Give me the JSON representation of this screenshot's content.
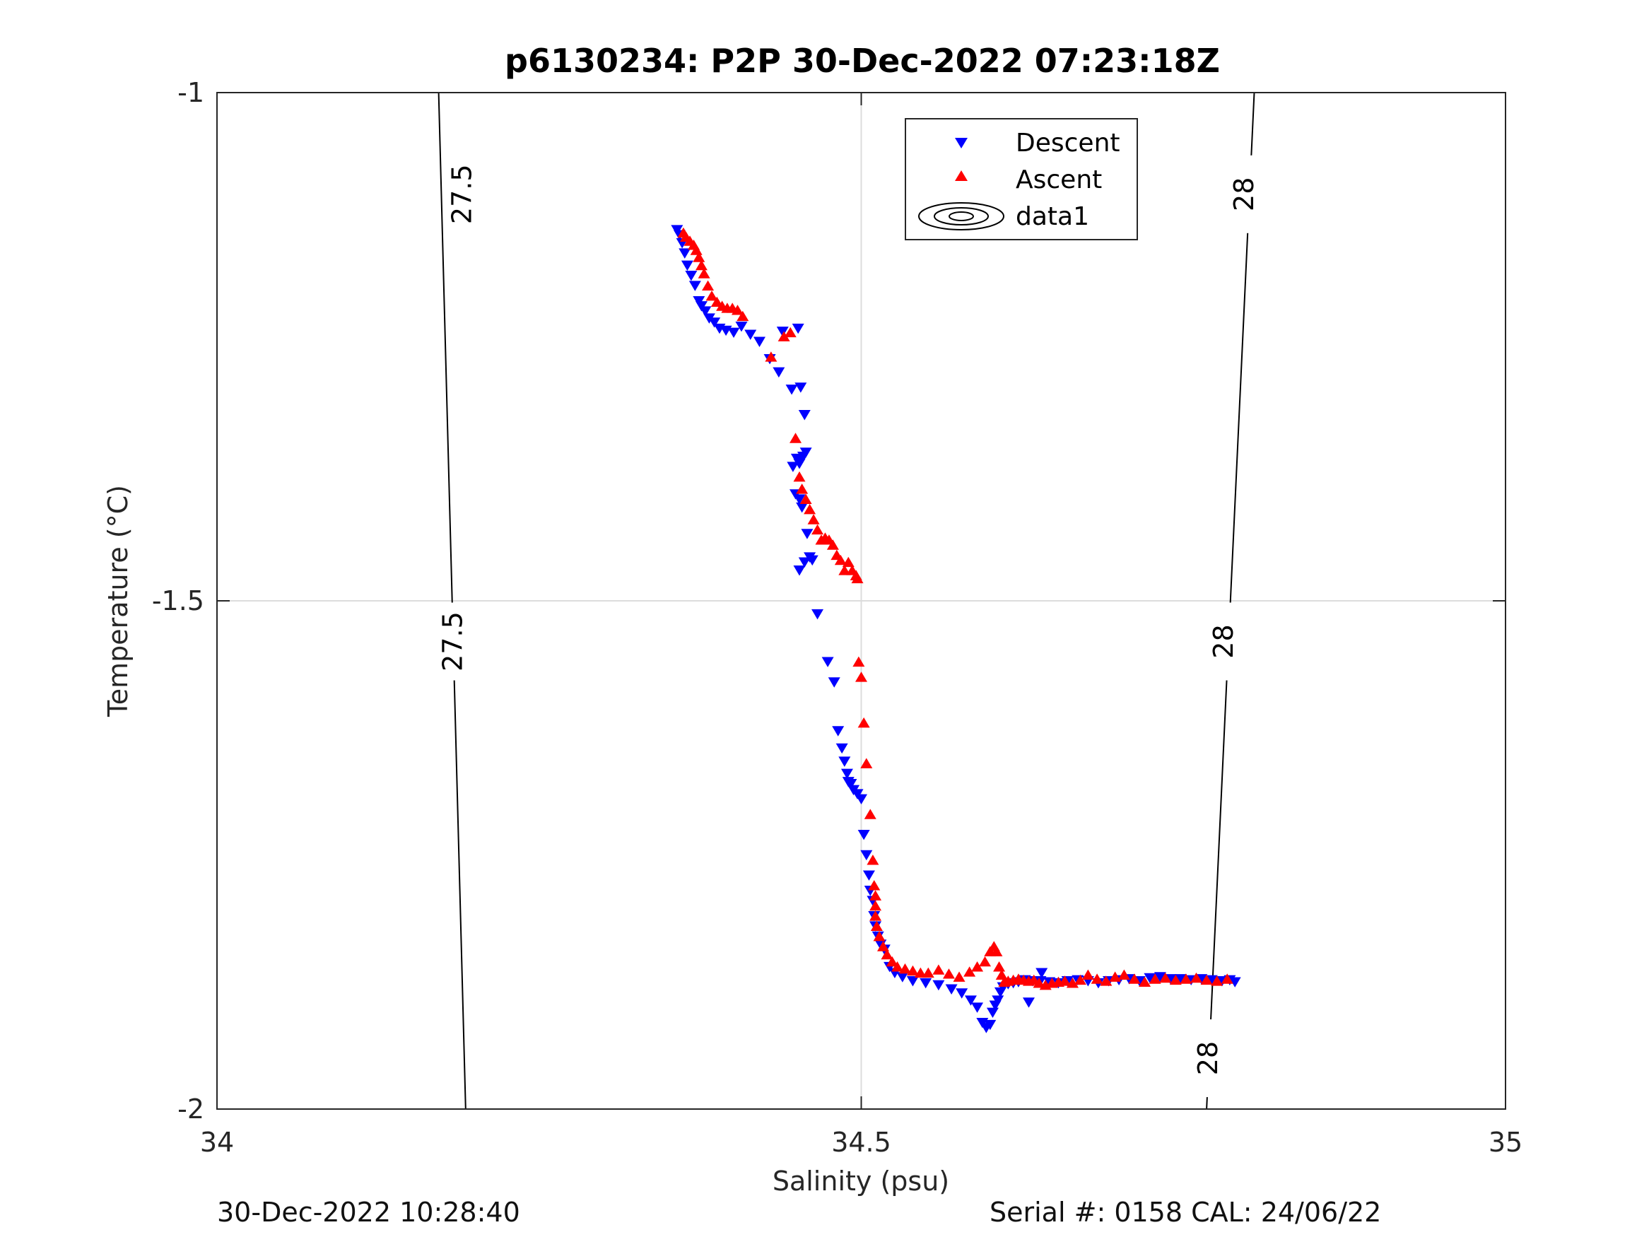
{
  "chart_data": {
    "type": "scatter",
    "title": "p6130234: P2P 30-Dec-2022 07:23:18Z",
    "xlabel": "Salinity (psu)",
    "ylabel": "Temperature (°C)",
    "xlim": [
      34,
      35
    ],
    "ylim": [
      -2,
      -1
    ],
    "xticks": [
      34,
      34.5,
      35
    ],
    "xtick_labels": [
      "34",
      "34.5",
      "35"
    ],
    "yticks": [
      -2,
      -1.5,
      -1
    ],
    "ytick_labels": [
      "-2",
      "-1.5",
      "-1"
    ],
    "grid": true,
    "legend_position": "top-center",
    "legend": [
      {
        "label": "Descent",
        "marker": "triangle-down",
        "color": "#0000ff"
      },
      {
        "label": "Ascent",
        "marker": "triangle-up",
        "color": "#ff0000"
      },
      {
        "label": "data1",
        "marker": "contour",
        "color": "#000000"
      }
    ],
    "contours": [
      {
        "label": "27.5",
        "points": [
          [
            34.193,
            -2.0
          ],
          [
            34.172,
            -1.0
          ]
        ],
        "label_positions": [
          [
            34.183,
            -1.54
          ],
          [
            34.19,
            -1.1
          ]
        ]
      },
      {
        "label": "28",
        "points": [
          [
            34.768,
            -2.0
          ],
          [
            34.805,
            -1.0
          ]
        ],
        "label_positions": [
          [
            34.781,
            -1.54
          ],
          [
            34.797,
            -1.1
          ]
        ]
      },
      {
        "label": "28",
        "label_positions": [
          [
            34.769,
            -1.95
          ]
        ]
      }
    ],
    "series": [
      {
        "name": "Descent",
        "color": "#0000ff",
        "marker": "triangle-down",
        "x": [
          34.357,
          34.359,
          34.361,
          34.363,
          34.365,
          34.368,
          34.371,
          34.374,
          34.376,
          34.379,
          34.382,
          34.386,
          34.39,
          34.395,
          34.401,
          34.407,
          34.414,
          34.421,
          34.429,
          34.436,
          34.439,
          34.446,
          34.451,
          34.453,
          34.456,
          34.447,
          34.452,
          34.453,
          34.457,
          34.45,
          34.452,
          34.455,
          34.449,
          34.452,
          34.454,
          34.458,
          34.46,
          34.456,
          34.452,
          34.462,
          34.466,
          34.474,
          34.479,
          34.482,
          34.485,
          34.487,
          34.489,
          34.49,
          34.492,
          34.494,
          34.497,
          34.5,
          34.502,
          34.504,
          34.506,
          34.507,
          34.509,
          34.51,
          34.511,
          34.513,
          34.515,
          34.518,
          34.522,
          34.526,
          34.532,
          34.54,
          34.55,
          34.56,
          34.57,
          34.578,
          34.585,
          34.59,
          34.594,
          34.597,
          34.6,
          34.602,
          34.604,
          34.606,
          34.608,
          34.61,
          34.614,
          34.618,
          34.622,
          34.627,
          34.633,
          34.639,
          34.646,
          34.653,
          34.66,
          34.668,
          34.676,
          34.684,
          34.692,
          34.7,
          34.708,
          34.716,
          34.724,
          34.732,
          34.74,
          34.748,
          34.756,
          34.764,
          34.772,
          34.78,
          34.786,
          34.79,
          34.64,
          34.63
        ],
        "y": [
          -1.135,
          -1.14,
          -1.148,
          -1.158,
          -1.17,
          -1.18,
          -1.19,
          -1.205,
          -1.21,
          -1.215,
          -1.222,
          -1.226,
          -1.232,
          -1.234,
          -1.236,
          -1.23,
          -1.238,
          -1.245,
          -1.262,
          -1.275,
          -1.235,
          -1.292,
          -1.232,
          -1.29,
          -1.317,
          -1.368,
          -1.365,
          -1.362,
          -1.354,
          -1.36,
          -1.363,
          -1.358,
          -1.395,
          -1.4,
          -1.408,
          -1.434,
          -1.457,
          -1.462,
          -1.47,
          -1.46,
          -1.513,
          -1.56,
          -1.58,
          -1.628,
          -1.645,
          -1.658,
          -1.67,
          -1.678,
          -1.68,
          -1.686,
          -1.69,
          -1.695,
          -1.73,
          -1.75,
          -1.77,
          -1.785,
          -1.795,
          -1.81,
          -1.82,
          -1.83,
          -1.838,
          -1.843,
          -1.86,
          -1.866,
          -1.87,
          -1.874,
          -1.876,
          -1.878,
          -1.882,
          -1.886,
          -1.893,
          -1.9,
          -1.915,
          -1.92,
          -1.917,
          -1.905,
          -1.898,
          -1.893,
          -1.885,
          -1.88,
          -1.877,
          -1.876,
          -1.875,
          -1.873,
          -1.874,
          -1.874,
          -1.875,
          -1.876,
          -1.874,
          -1.873,
          -1.874,
          -1.876,
          -1.874,
          -1.873,
          -1.872,
          -1.874,
          -1.871,
          -1.87,
          -1.872,
          -1.872,
          -1.873,
          -1.872,
          -1.873,
          -1.874,
          -1.873,
          -1.875,
          -1.866,
          -1.895
        ]
      },
      {
        "name": "Ascent",
        "color": "#ff0000",
        "marker": "triangle-up",
        "x": [
          34.362,
          34.364,
          34.367,
          34.37,
          34.372,
          34.374,
          34.376,
          34.378,
          34.381,
          34.384,
          34.388,
          34.392,
          34.396,
          34.4,
          34.404,
          34.408,
          34.43,
          34.44,
          34.445,
          34.449,
          34.452,
          34.454,
          34.457,
          34.46,
          34.463,
          34.466,
          34.469,
          34.472,
          34.475,
          34.478,
          34.481,
          34.484,
          34.487,
          34.49,
          34.493,
          34.496,
          34.497,
          34.498,
          34.5,
          34.502,
          34.504,
          34.507,
          34.509,
          34.51,
          34.511,
          34.511,
          34.511,
          34.512,
          34.514,
          34.517,
          34.52,
          34.524,
          34.528,
          34.534,
          34.54,
          34.546,
          34.552,
          34.56,
          34.568,
          34.576,
          34.584,
          34.59,
          34.596,
          34.6,
          34.603,
          34.605,
          34.607,
          34.609,
          34.611,
          34.614,
          34.618,
          34.622,
          34.626,
          34.63,
          34.634,
          34.638,
          34.643,
          34.648,
          34.653,
          34.658,
          34.664,
          34.67,
          34.676,
          34.683,
          34.69,
          34.697,
          34.704,
          34.712,
          34.72,
          34.728,
          34.736,
          34.744,
          34.752,
          34.76,
          34.768,
          34.776,
          34.784
        ],
        "y": [
          -1.138,
          -1.142,
          -1.146,
          -1.15,
          -1.155,
          -1.162,
          -1.17,
          -1.178,
          -1.19,
          -1.2,
          -1.206,
          -1.21,
          -1.212,
          -1.212,
          -1.214,
          -1.22,
          -1.26,
          -1.24,
          -1.236,
          -1.34,
          -1.378,
          -1.39,
          -1.4,
          -1.41,
          -1.42,
          -1.43,
          -1.44,
          -1.438,
          -1.44,
          -1.445,
          -1.455,
          -1.46,
          -1.47,
          -1.462,
          -1.47,
          -1.475,
          -1.478,
          -1.56,
          -1.575,
          -1.62,
          -1.66,
          -1.71,
          -1.755,
          -1.78,
          -1.79,
          -1.8,
          -1.81,
          -1.82,
          -1.83,
          -1.84,
          -1.848,
          -1.855,
          -1.86,
          -1.862,
          -1.864,
          -1.866,
          -1.866,
          -1.863,
          -1.867,
          -1.87,
          -1.865,
          -1.86,
          -1.855,
          -1.845,
          -1.84,
          -1.845,
          -1.86,
          -1.868,
          -1.875,
          -1.874,
          -1.873,
          -1.872,
          -1.873,
          -1.874,
          -1.873,
          -1.876,
          -1.878,
          -1.876,
          -1.875,
          -1.874,
          -1.876,
          -1.873,
          -1.868,
          -1.872,
          -1.874,
          -1.87,
          -1.868,
          -1.872,
          -1.875,
          -1.872,
          -1.871,
          -1.873,
          -1.872,
          -1.871,
          -1.873,
          -1.874,
          -1.872
        ]
      }
    ]
  },
  "footer": {
    "timestamp": "30-Dec-2022 10:28:40",
    "serial": "Serial #: 0158  CAL: 24/06/22"
  }
}
